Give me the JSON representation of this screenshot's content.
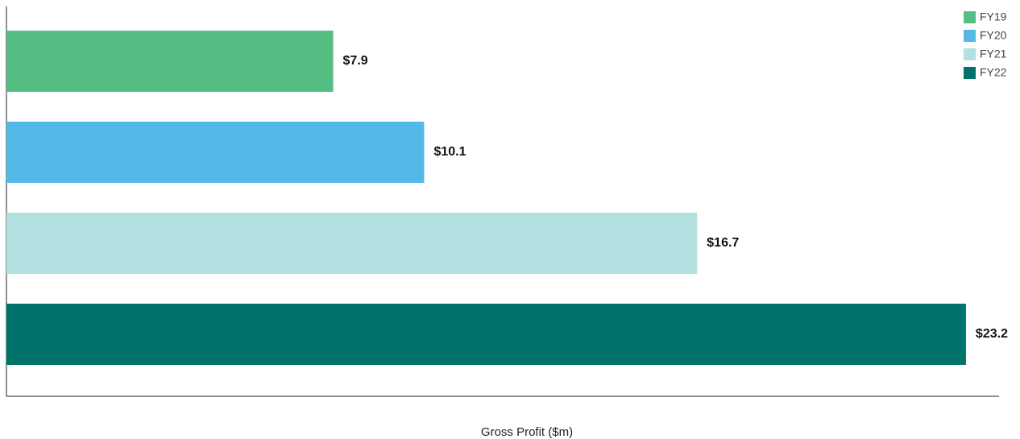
{
  "chart_data": {
    "type": "bar",
    "orientation": "horizontal",
    "categories": [
      null
    ],
    "series": [
      {
        "name": "FY19",
        "color": "#55bf83",
        "values": [
          7.9
        ],
        "value_labels": [
          "$7.9"
        ]
      },
      {
        "name": "FY20",
        "color": "#55b9e8",
        "values": [
          10.1
        ],
        "value_labels": [
          "$10.1"
        ]
      },
      {
        "name": "FY21",
        "color": "#b3e0e0",
        "values": [
          16.7
        ],
        "value_labels": [
          "$16.7"
        ]
      },
      {
        "name": "FY22",
        "color": "#00736b",
        "values": [
          23.2
        ],
        "value_labels": [
          "$23.2"
        ]
      }
    ],
    "xlabel": "Gross Profit ($m)",
    "xlim": [
      0,
      24
    ],
    "legend": "upper right"
  }
}
